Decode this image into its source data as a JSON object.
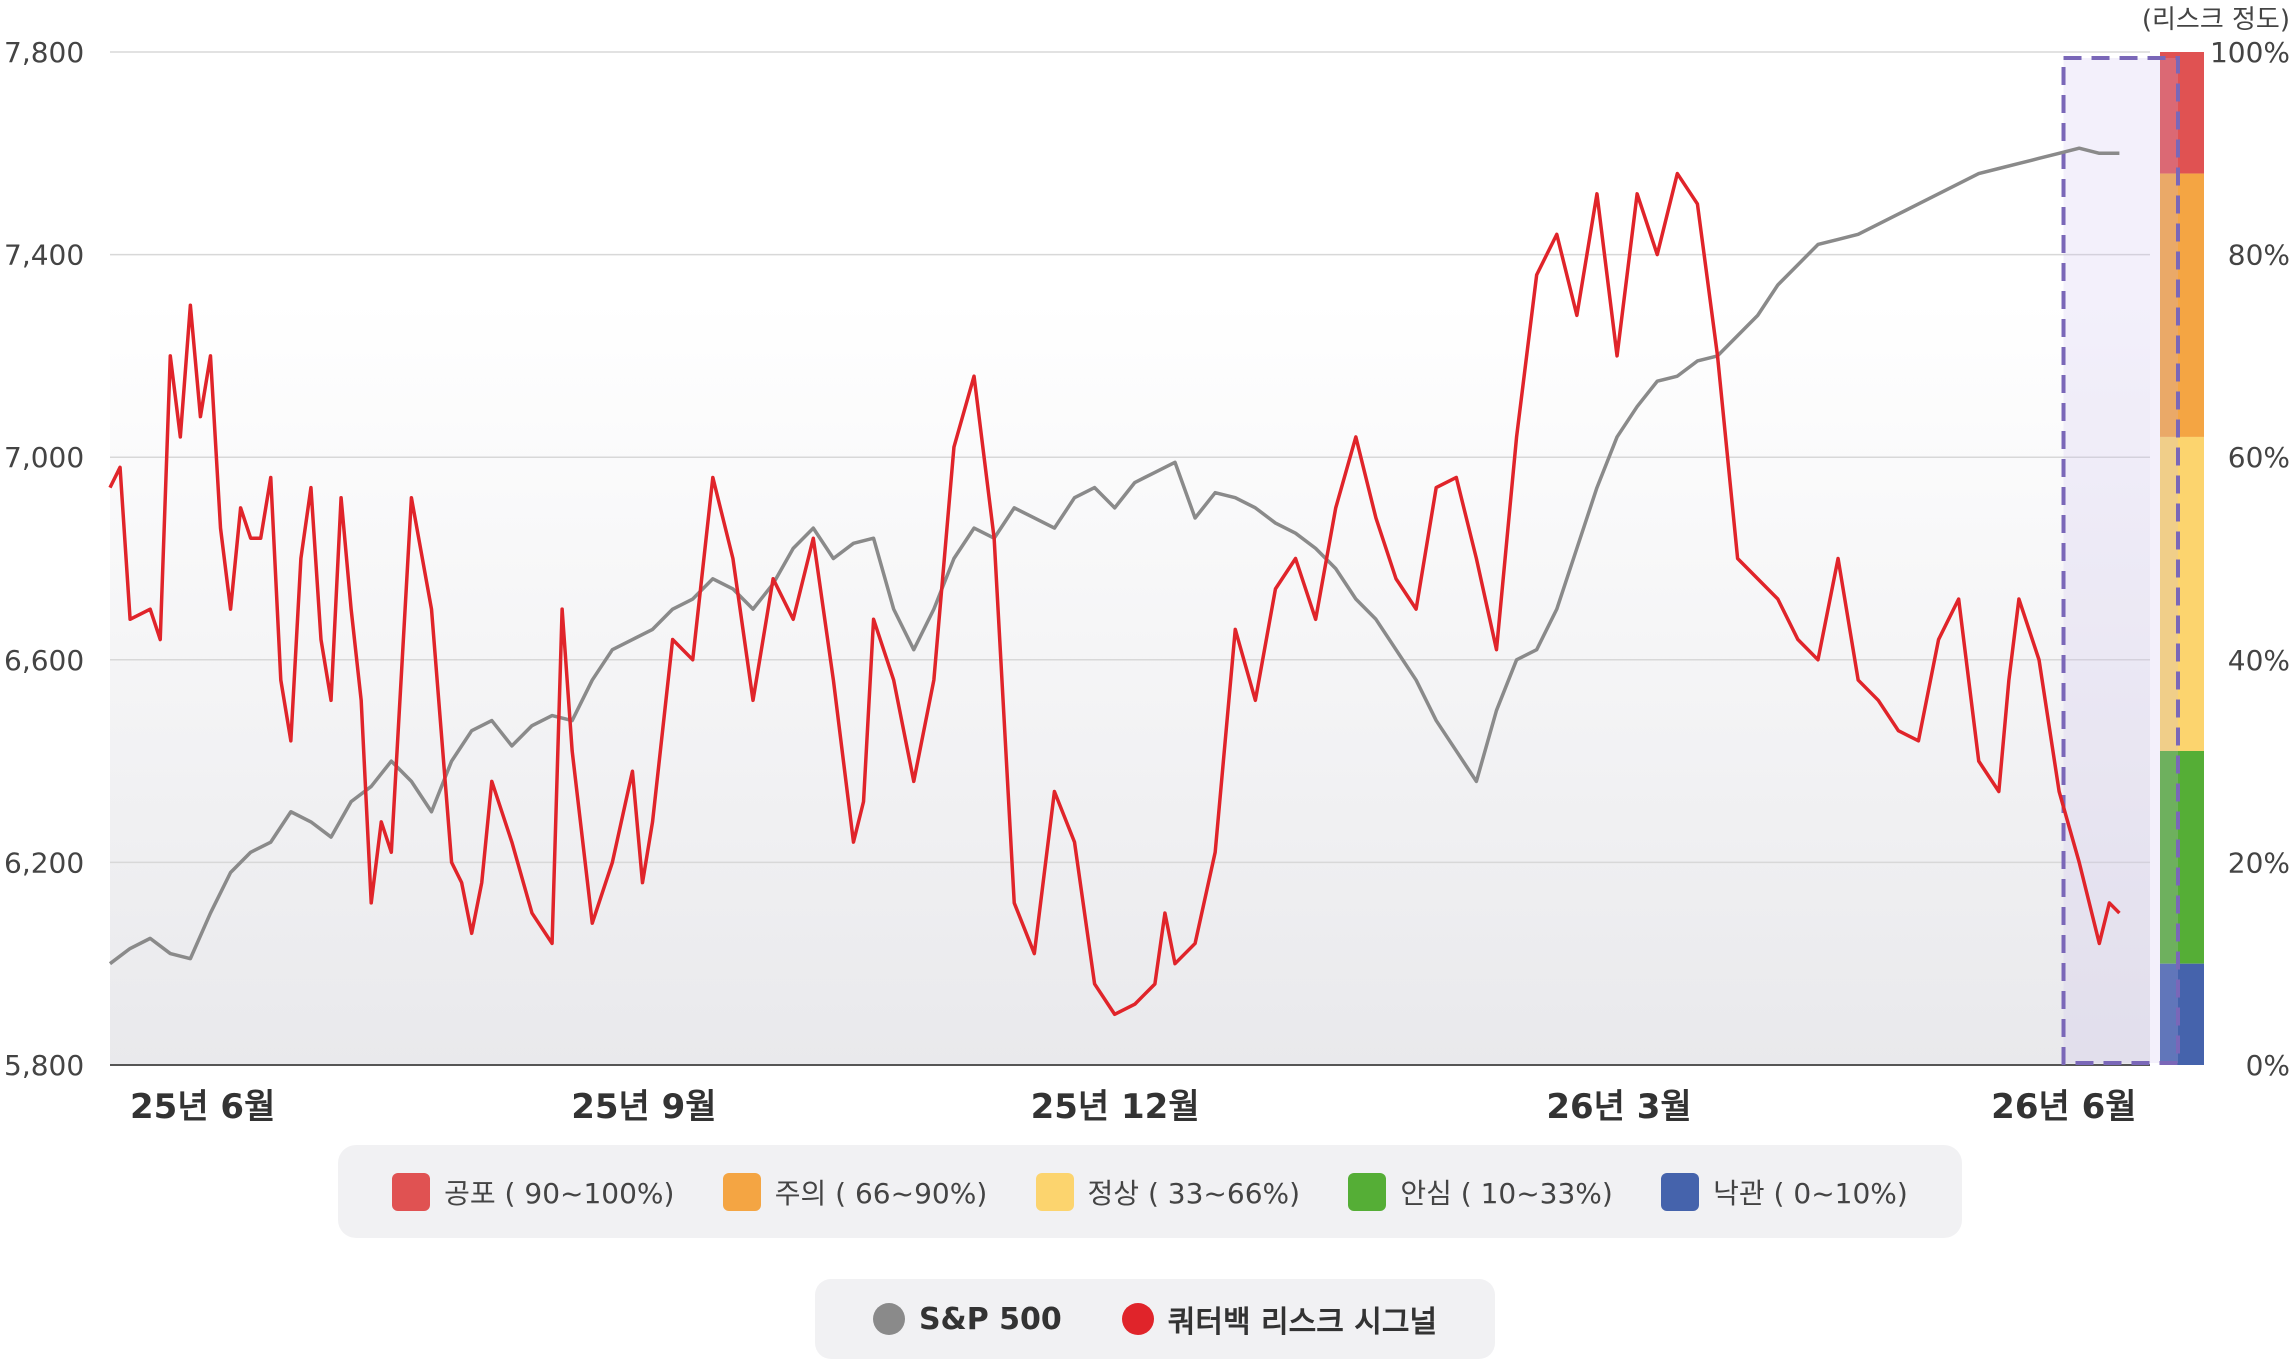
{
  "chart_data": {
    "type": "line",
    "left_axis": {
      "ticks": [
        "7,800",
        "7,400",
        "7,000",
        "6,600",
        "6,200",
        "5,800"
      ],
      "ylim": [
        5800,
        7800
      ]
    },
    "right_axis": {
      "title": "(리스크 정도)",
      "ticks": [
        "100%",
        "80%",
        "60%",
        "40%",
        "20%",
        "0%"
      ],
      "ylim": [
        0,
        100
      ]
    },
    "x_tick_labels": [
      "25년 6월",
      "25년 9월",
      "25년 12월",
      "26년 3월",
      "26년 6월"
    ],
    "x_tick_positions": [
      0,
      0.247,
      0.478,
      0.725,
      0.964
    ],
    "risk_bands": [
      {
        "label": "공포 ( 90~100%)",
        "from": 88,
        "to": 100,
        "color": "#e05252"
      },
      {
        "label": "주의 ( 66~90%)",
        "from": 62,
        "to": 88,
        "color": "#f4a543"
      },
      {
        "label": "정상 ( 33~66%)",
        "from": 31,
        "to": 62,
        "color": "#fcd46e"
      },
      {
        "label": "안심 ( 10~33%)",
        "from": 10,
        "to": 31,
        "color": "#55ae36"
      },
      {
        "label": "낙관 ( 0~10%)",
        "from": 0,
        "to": 10,
        "color": "#4563ac"
      }
    ],
    "highlight_region": {
      "x_from": 0.938,
      "x_to": 1.0
    },
    "series": [
      {
        "name": "S&P 500",
        "color": "#8a8a8a",
        "axis": "left",
        "x": [
          0,
          0.01,
          0.02,
          0.03,
          0.04,
          0.05,
          0.06,
          0.07,
          0.08,
          0.09,
          0.1,
          0.11,
          0.12,
          0.13,
          0.14,
          0.15,
          0.16,
          0.17,
          0.18,
          0.19,
          0.2,
          0.21,
          0.22,
          0.23,
          0.24,
          0.25,
          0.26,
          0.27,
          0.28,
          0.29,
          0.3,
          0.31,
          0.32,
          0.33,
          0.34,
          0.35,
          0.36,
          0.37,
          0.38,
          0.39,
          0.4,
          0.41,
          0.42,
          0.43,
          0.44,
          0.45,
          0.46,
          0.47,
          0.48,
          0.49,
          0.5,
          0.51,
          0.52,
          0.53,
          0.54,
          0.55,
          0.56,
          0.57,
          0.58,
          0.59,
          0.6,
          0.61,
          0.62,
          0.63,
          0.64,
          0.65,
          0.66,
          0.67,
          0.68,
          0.69,
          0.7,
          0.71,
          0.72,
          0.73,
          0.74,
          0.75,
          0.76,
          0.77,
          0.78,
          0.79,
          0.8,
          0.81,
          0.82,
          0.83,
          0.84,
          0.85,
          0.86,
          0.87,
          0.88,
          0.89,
          0.9,
          0.91,
          0.92,
          0.93,
          0.94,
          0.95,
          0.96,
          0.97,
          0.98,
          0.99,
          1.0
        ],
        "values": [
          6000,
          6030,
          6050,
          6020,
          6010,
          6100,
          6180,
          6220,
          6240,
          6300,
          6280,
          6250,
          6320,
          6350,
          6400,
          6360,
          6300,
          6400,
          6460,
          6480,
          6430,
          6470,
          6490,
          6480,
          6560,
          6620,
          6640,
          6660,
          6700,
          6720,
          6760,
          6740,
          6700,
          6750,
          6820,
          6860,
          6800,
          6830,
          6840,
          6700,
          6620,
          6700,
          6800,
          6860,
          6840,
          6900,
          6880,
          6860,
          6920,
          6940,
          6900,
          6950,
          6970,
          6990,
          6880,
          6930,
          6920,
          6900,
          6870,
          6850,
          6820,
          6780,
          6720,
          6680,
          6620,
          6560,
          6480,
          6420,
          6360,
          6500,
          6600,
          6620,
          6700,
          6820,
          6940,
          7040,
          7100,
          7150,
          7160,
          7190,
          7200,
          7240,
          7280,
          7340,
          7380,
          7420,
          7430,
          7440,
          7460,
          7480,
          7500,
          7520,
          7540,
          7560,
          7570,
          7580,
          7590,
          7600,
          7610,
          7600,
          7600
        ],
        "ylim": [
          5800,
          7800
        ]
      },
      {
        "name": "쿼터백 리스크 시그널",
        "color": "#e0242a",
        "axis": "right",
        "x": [
          0,
          0.005,
          0.01,
          0.02,
          0.025,
          0.03,
          0.035,
          0.04,
          0.045,
          0.05,
          0.055,
          0.06,
          0.065,
          0.07,
          0.075,
          0.08,
          0.085,
          0.09,
          0.095,
          0.1,
          0.105,
          0.11,
          0.115,
          0.12,
          0.125,
          0.13,
          0.135,
          0.14,
          0.15,
          0.16,
          0.17,
          0.175,
          0.18,
          0.185,
          0.19,
          0.2,
          0.21,
          0.22,
          0.225,
          0.23,
          0.24,
          0.25,
          0.26,
          0.265,
          0.27,
          0.28,
          0.29,
          0.3,
          0.31,
          0.32,
          0.33,
          0.34,
          0.35,
          0.36,
          0.37,
          0.375,
          0.38,
          0.39,
          0.4,
          0.41,
          0.42,
          0.43,
          0.44,
          0.45,
          0.46,
          0.47,
          0.48,
          0.49,
          0.5,
          0.51,
          0.52,
          0.525,
          0.53,
          0.54,
          0.55,
          0.56,
          0.57,
          0.58,
          0.59,
          0.6,
          0.61,
          0.62,
          0.63,
          0.64,
          0.65,
          0.66,
          0.67,
          0.68,
          0.69,
          0.7,
          0.71,
          0.72,
          0.73,
          0.74,
          0.75,
          0.76,
          0.77,
          0.78,
          0.79,
          0.8,
          0.81,
          0.82,
          0.83,
          0.84,
          0.85,
          0.86,
          0.87,
          0.88,
          0.89,
          0.9,
          0.91,
          0.92,
          0.93,
          0.94,
          0.945,
          0.95,
          0.96,
          0.97,
          0.98,
          0.99,
          0.995,
          1.0
        ],
        "values": [
          57,
          59,
          44,
          45,
          42,
          70,
          62,
          75,
          64,
          70,
          53,
          45,
          55,
          52,
          52,
          58,
          38,
          32,
          50,
          57,
          42,
          36,
          56,
          45,
          36,
          16,
          24,
          21,
          56,
          45,
          20,
          18,
          13,
          18,
          28,
          22,
          15,
          12,
          45,
          31,
          14,
          20,
          29,
          18,
          24,
          42,
          40,
          58,
          50,
          36,
          48,
          44,
          52,
          38,
          22,
          26,
          44,
          38,
          28,
          38,
          61,
          68,
          52,
          16,
          11,
          27,
          22,
          8,
          5,
          6,
          8,
          15,
          10,
          12,
          21,
          43,
          36,
          47,
          50,
          44,
          55,
          62,
          54,
          48,
          45,
          57,
          58,
          50,
          41,
          62,
          78,
          82,
          74,
          86,
          70,
          86,
          80,
          88,
          85,
          70,
          50,
          48,
          46,
          42,
          40,
          50,
          38,
          36,
          33,
          32,
          42,
          46,
          30,
          27,
          38,
          46,
          40,
          27,
          20,
          12,
          16,
          15
        ]
      }
    ]
  },
  "series_legend": [
    {
      "label": "S&P 500",
      "color": "#8a8a8a"
    },
    {
      "label": "쿼터백 리스크 시그널",
      "color": "#e0242a"
    }
  ]
}
